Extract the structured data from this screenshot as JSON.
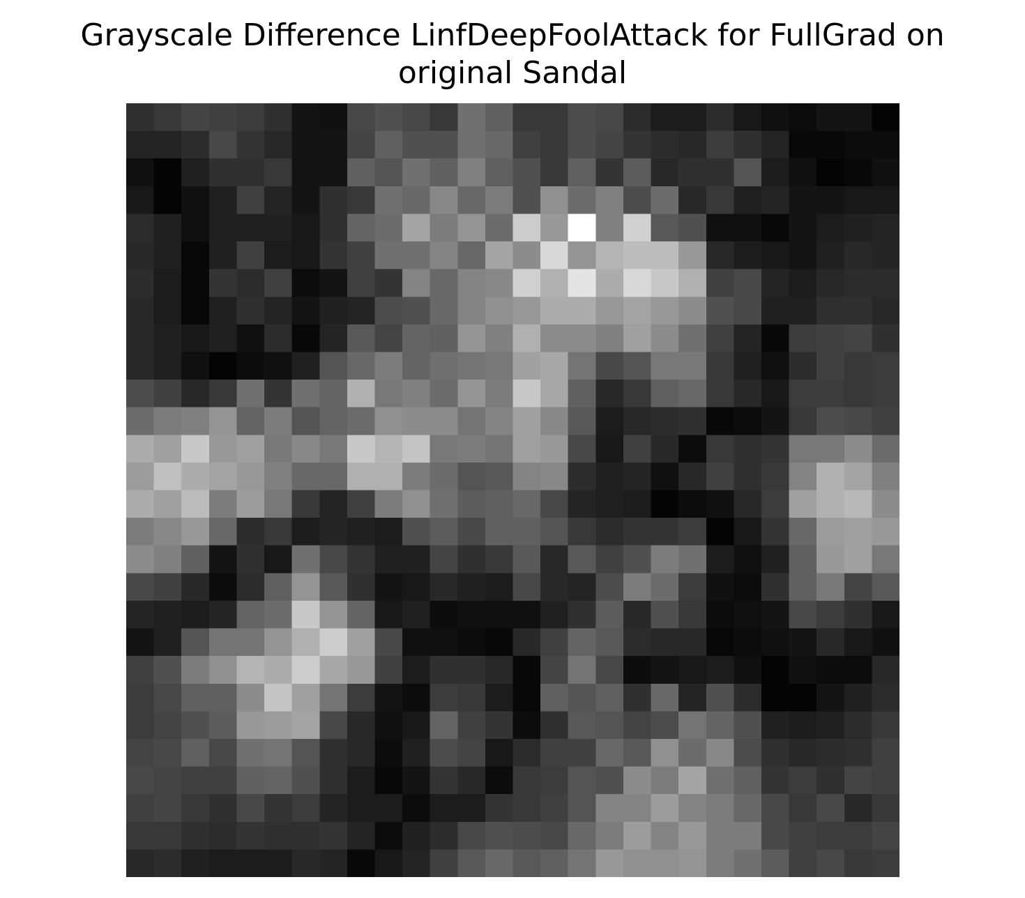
{
  "chart_data": {
    "type": "heatmap",
    "title_line1": "Grayscale Difference LinfDeepFoolAttack for FullGrad on",
    "title_line2": "original Sandal",
    "colormap": "gray",
    "axes": "off",
    "value_range": [
      0,
      255
    ],
    "rows": 28,
    "cols": 28,
    "values": [
      [
        48,
        56,
        68,
        64,
        60,
        48,
        20,
        16,
        72,
        80,
        72,
        56,
        112,
        96,
        56,
        56,
        76,
        72,
        44,
        28,
        28,
        44,
        24,
        16,
        12,
        20,
        20,
        4
      ],
      [
        36,
        36,
        44,
        72,
        52,
        40,
        20,
        20,
        68,
        96,
        80,
        80,
        112,
        104,
        64,
        56,
        76,
        68,
        52,
        44,
        40,
        60,
        48,
        36,
        8,
        8,
        12,
        12
      ],
      [
        16,
        4,
        32,
        48,
        48,
        56,
        20,
        20,
        96,
        84,
        112,
        96,
        128,
        96,
        80,
        56,
        96,
        52,
        92,
        40,
        48,
        48,
        84,
        28,
        16,
        4,
        8,
        16
      ],
      [
        24,
        4,
        16,
        32,
        64,
        36,
        20,
        48,
        56,
        112,
        104,
        136,
        104,
        124,
        80,
        144,
        108,
        128,
        76,
        108,
        40,
        56,
        32,
        36,
        20,
        20,
        24,
        24
      ],
      [
        44,
        32,
        16,
        32,
        32,
        32,
        24,
        48,
        100,
        108,
        164,
        124,
        148,
        108,
        204,
        152,
        255,
        128,
        208,
        88,
        80,
        16,
        16,
        8,
        20,
        28,
        32,
        36
      ],
      [
        40,
        32,
        8,
        32,
        64,
        28,
        24,
        52,
        64,
        112,
        112,
        132,
        104,
        164,
        140,
        216,
        148,
        180,
        188,
        188,
        152,
        40,
        28,
        24,
        20,
        32,
        40,
        36
      ],
      [
        44,
        28,
        8,
        52,
        44,
        64,
        12,
        20,
        64,
        52,
        132,
        104,
        132,
        136,
        208,
        176,
        228,
        172,
        216,
        200,
        176,
        64,
        72,
        36,
        28,
        40,
        44,
        44
      ],
      [
        40,
        28,
        8,
        32,
        48,
        36,
        20,
        32,
        36,
        76,
        80,
        104,
        132,
        144,
        152,
        172,
        172,
        152,
        164,
        152,
        140,
        80,
        72,
        32,
        32,
        48,
        48,
        40
      ],
      [
        40,
        32,
        24,
        32,
        16,
        44,
        8,
        36,
        88,
        68,
        100,
        96,
        148,
        128,
        176,
        140,
        140,
        128,
        160,
        140,
        112,
        64,
        36,
        8,
        60,
        64,
        68,
        48
      ],
      [
        40,
        32,
        16,
        4,
        12,
        16,
        32,
        84,
        104,
        124,
        100,
        112,
        116,
        120,
        160,
        168,
        116,
        72,
        84,
        120,
        120,
        56,
        32,
        16,
        44,
        64,
        56,
        60
      ],
      [
        76,
        64,
        40,
        56,
        112,
        52,
        112,
        100,
        176,
        120,
        128,
        108,
        148,
        124,
        200,
        168,
        96,
        40,
        56,
        96,
        104,
        56,
        40,
        24,
        60,
        60,
        56,
        60
      ],
      [
        108,
        124,
        128,
        148,
        100,
        124,
        84,
        100,
        108,
        144,
        140,
        140,
        116,
        132,
        160,
        136,
        88,
        28,
        40,
        44,
        48,
        8,
        12,
        20,
        56,
        76,
        72,
        64
      ],
      [
        172,
        160,
        200,
        152,
        160,
        120,
        136,
        120,
        200,
        180,
        196,
        120,
        124,
        116,
        160,
        152,
        72,
        24,
        64,
        40,
        12,
        56,
        48,
        52,
        120,
        120,
        140,
        108
      ],
      [
        156,
        192,
        172,
        164,
        152,
        128,
        104,
        104,
        176,
        176,
        124,
        108,
        84,
        88,
        132,
        136,
        44,
        32,
        36,
        16,
        40,
        64,
        48,
        56,
        132,
        176,
        164,
        128
      ],
      [
        172,
        160,
        188,
        124,
        156,
        120,
        56,
        36,
        64,
        124,
        144,
        112,
        92,
        96,
        104,
        72,
        36,
        32,
        28,
        4,
        12,
        16,
        40,
        60,
        160,
        176,
        184,
        140
      ],
      [
        124,
        136,
        152,
        104,
        44,
        56,
        28,
        36,
        32,
        28,
        80,
        92,
        72,
        96,
        96,
        84,
        56,
        44,
        52,
        52,
        60,
        4,
        24,
        52,
        104,
        156,
        160,
        152
      ],
      [
        140,
        128,
        96,
        20,
        48,
        24,
        112,
        72,
        52,
        32,
        32,
        68,
        48,
        56,
        88,
        40,
        88,
        64,
        80,
        124,
        112,
        28,
        16,
        32,
        96,
        152,
        160,
        120
      ],
      [
        72,
        64,
        40,
        12,
        44,
        96,
        148,
        88,
        48,
        20,
        24,
        40,
        32,
        28,
        72,
        40,
        36,
        76,
        124,
        108,
        60,
        16,
        12,
        48,
        96,
        120,
        68,
        88
      ],
      [
        36,
        32,
        28,
        36,
        100,
        108,
        200,
        148,
        100,
        24,
        32,
        12,
        16,
        16,
        16,
        32,
        48,
        92,
        40,
        80,
        56,
        12,
        16,
        20,
        72,
        60,
        48,
        24
      ],
      [
        20,
        32,
        84,
        116,
        116,
        148,
        176,
        204,
        160,
        72,
        16,
        16,
        12,
        8,
        40,
        64,
        100,
        88,
        44,
        40,
        40,
        8,
        12,
        16,
        20,
        40,
        24,
        16
      ],
      [
        64,
        80,
        124,
        144,
        180,
        172,
        204,
        168,
        152,
        64,
        28,
        48,
        48,
        40,
        8,
        68,
        116,
        72,
        12,
        20,
        24,
        28,
        16,
        4,
        16,
        12,
        12,
        40
      ],
      [
        60,
        72,
        96,
        96,
        140,
        196,
        160,
        116,
        60,
        20,
        12,
        60,
        56,
        28,
        8,
        96,
        84,
        96,
        48,
        104,
        36,
        80,
        44,
        4,
        4,
        20,
        32,
        44
      ],
      [
        60,
        68,
        80,
        92,
        152,
        156,
        164,
        72,
        40,
        16,
        24,
        100,
        64,
        52,
        12,
        48,
        88,
        84,
        68,
        76,
        116,
        100,
        80,
        32,
        28,
        32,
        44,
        56
      ],
      [
        68,
        72,
        96,
        72,
        112,
        116,
        84,
        48,
        40,
        12,
        32,
        76,
        68,
        24,
        44,
        64,
        64,
        104,
        88,
        144,
        108,
        136,
        76,
        48,
        40,
        44,
        48,
        64
      ],
      [
        72,
        68,
        64,
        64,
        96,
        100,
        80,
        48,
        28,
        8,
        20,
        52,
        40,
        12,
        56,
        60,
        84,
        80,
        140,
        124,
        164,
        112,
        96,
        52,
        60,
        48,
        68,
        64
      ],
      [
        64,
        68,
        56,
        48,
        72,
        52,
        60,
        36,
        28,
        28,
        12,
        28,
        28,
        52,
        56,
        64,
        84,
        132,
        132,
        156,
        132,
        124,
        104,
        72,
        56,
        72,
        40,
        56
      ],
      [
        56,
        56,
        48,
        44,
        52,
        48,
        48,
        52,
        36,
        12,
        32,
        44,
        72,
        80,
        76,
        72,
        104,
        124,
        156,
        132,
        152,
        124,
        124,
        72,
        64,
        60,
        60,
        68
      ],
      [
        40,
        44,
        32,
        28,
        28,
        28,
        40,
        36,
        8,
        24,
        36,
        64,
        88,
        104,
        88,
        96,
        116,
        152,
        144,
        144,
        148,
        124,
        112,
        92,
        64,
        72,
        56,
        60
      ]
    ]
  }
}
